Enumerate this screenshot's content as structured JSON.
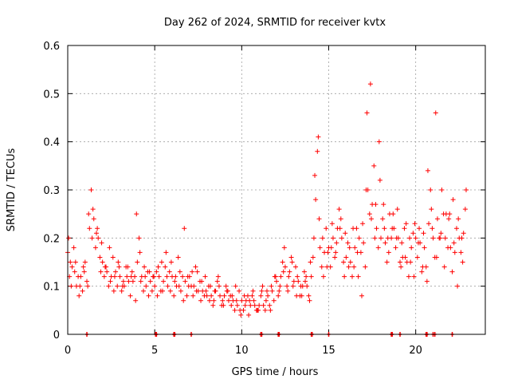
{
  "chart_data": {
    "type": "scatter",
    "title": "Day 262 of 2024, SRMTID for receiver kvtx",
    "xlabel": "GPS time / hours",
    "ylabel": "SRMTID / TECUs",
    "xlim": [
      0,
      24
    ],
    "ylim": [
      0,
      0.6
    ],
    "xticks": [
      0,
      5,
      10,
      15,
      20
    ],
    "yticks": [
      0,
      0.1,
      0.2,
      0.3,
      0.4,
      0.5,
      0.6
    ],
    "xtick_labels": [
      "0",
      "5",
      "10",
      "15",
      "20"
    ],
    "ytick_labels": [
      "0",
      "0.1",
      "0.2",
      "0.3",
      "0.4",
      "0.5",
      "0.6"
    ],
    "grid": true,
    "marker": "+",
    "series_color": "#ff0000",
    "series": [
      {
        "name": "SRMTID",
        "x": [
          0.0,
          0.25,
          0.5,
          0.75,
          1.0,
          1.25,
          1.5,
          1.75,
          2.0,
          2.25,
          2.5,
          2.75,
          3.0,
          3.25,
          3.5,
          3.75,
          4.0,
          4.25,
          4.5,
          4.75,
          5.0,
          5.25,
          5.5,
          5.75,
          6.0,
          6.25,
          6.5,
          6.75,
          7.0,
          7.25,
          7.5,
          7.75,
          8.0,
          8.25,
          8.5,
          8.75,
          9.0,
          9.25,
          9.5,
          9.75,
          10.0,
          10.25,
          10.5,
          10.75,
          11.0,
          11.25,
          11.5,
          11.75,
          12.0,
          12.25,
          12.5,
          12.75,
          13.0,
          13.25,
          13.5,
          13.75,
          14.0,
          14.25,
          14.5,
          14.75,
          15.0,
          15.25,
          15.5,
          15.75,
          16.0,
          16.25,
          16.5,
          16.75,
          17.0,
          17.25,
          17.5,
          17.75,
          18.0,
          18.25,
          18.5,
          18.75,
          19.0,
          19.25,
          19.5,
          19.75,
          20.0,
          20.25,
          20.5,
          20.75,
          21.0,
          21.25,
          21.5,
          21.75,
          22.0,
          22.25,
          22.5,
          22.75
        ],
        "y": [
          0.17,
          0.14,
          0.1,
          0.12,
          0.15,
          0.22,
          0.24,
          0.2,
          0.15,
          0.13,
          0.12,
          0.13,
          0.12,
          0.1,
          0.11,
          0.11,
          0.15,
          0.12,
          0.1,
          0.11,
          0.1,
          0.12,
          0.11,
          0.1,
          0.12,
          0.1,
          0.09,
          0.11,
          0.12,
          0.1,
          0.09,
          0.09,
          0.08,
          0.08,
          0.09,
          0.08,
          0.08,
          0.07,
          0.07,
          0.06,
          0.07,
          0.07,
          0.06,
          0.06,
          0.06,
          0.06,
          0.08,
          0.09,
          0.11,
          0.12,
          0.14,
          0.13,
          0.11,
          0.11,
          0.1,
          0.1,
          0.12,
          0.28,
          0.18,
          0.17,
          0.18,
          0.2,
          0.22,
          0.2,
          0.16,
          0.15,
          0.18,
          0.2,
          0.19,
          0.3,
          0.27,
          0.22,
          0.2,
          0.19,
          0.25,
          0.22,
          0.2,
          0.16,
          0.15,
          0.18,
          0.2,
          0.19,
          0.18,
          0.23,
          0.2,
          0.24,
          0.3,
          0.25,
          0.18,
          0.17,
          0.2,
          0.21
        ]
      },
      {
        "name": "SRMTID",
        "x": [
          0.1,
          0.35,
          0.6,
          0.85,
          1.1,
          1.35,
          1.6,
          1.85,
          2.1,
          2.35,
          2.6,
          2.85,
          3.1,
          3.35,
          3.6,
          3.85,
          4.1,
          4.35,
          4.6,
          4.85,
          5.1,
          5.35,
          5.6,
          5.85,
          6.1,
          6.35,
          6.6,
          6.85,
          7.1,
          7.35,
          7.6,
          7.85,
          8.1,
          8.35,
          8.6,
          8.85,
          9.1,
          9.35,
          9.6,
          9.85,
          10.1,
          10.35,
          10.6,
          10.85,
          11.1,
          11.35,
          11.6,
          11.85,
          12.1,
          12.35,
          12.6,
          12.85,
          13.1,
          13.35,
          13.6,
          13.85,
          14.1,
          14.35,
          14.6,
          14.85,
          15.1,
          15.35,
          15.6,
          15.85,
          16.1,
          16.35,
          16.6,
          16.85,
          17.1,
          17.35,
          17.6,
          17.85,
          18.1,
          18.35,
          18.6,
          18.85,
          19.1,
          19.35,
          19.6,
          19.85,
          20.1,
          20.35,
          20.6,
          20.85,
          21.1,
          21.35,
          21.6,
          21.85,
          22.1,
          22.35,
          22.6,
          22.85
        ],
        "y": [
          0.12,
          0.18,
          0.12,
          0.09,
          0.11,
          0.3,
          0.18,
          0.16,
          0.12,
          0.1,
          0.16,
          0.1,
          0.09,
          0.14,
          0.08,
          0.12,
          0.2,
          0.09,
          0.13,
          0.09,
          0.13,
          0.09,
          0.14,
          0.13,
          0.08,
          0.16,
          0.12,
          0.08,
          0.1,
          0.14,
          0.11,
          0.08,
          0.1,
          0.06,
          0.11,
          0.06,
          0.1,
          0.08,
          0.05,
          0.09,
          0.05,
          0.08,
          0.08,
          0.05,
          0.08,
          0.05,
          0.06,
          0.07,
          0.08,
          0.15,
          0.1,
          0.16,
          0.14,
          0.08,
          0.13,
          0.08,
          0.16,
          0.38,
          0.14,
          0.22,
          0.14,
          0.16,
          0.26,
          0.15,
          0.19,
          0.12,
          0.22,
          0.17,
          0.14,
          0.25,
          0.35,
          0.18,
          0.24,
          0.15,
          0.2,
          0.18,
          0.15,
          0.22,
          0.12,
          0.21,
          0.16,
          0.13,
          0.14,
          0.3,
          0.16,
          0.2,
          0.25,
          0.18,
          0.13,
          0.22,
          0.17,
          0.26
        ]
      },
      {
        "name": "SRMTID",
        "x": [
          0.05,
          0.2,
          0.45,
          0.7,
          0.95,
          1.2,
          1.45,
          1.7,
          1.95,
          2.2,
          2.45,
          2.7,
          2.95,
          3.2,
          3.45,
          3.7,
          3.95,
          4.2,
          4.45,
          4.7,
          4.95,
          5.2,
          5.45,
          5.7,
          5.95,
          6.2,
          6.45,
          6.7,
          6.95,
          7.2,
          7.45,
          7.7,
          7.95,
          8.2,
          8.45,
          8.7,
          8.95,
          9.2,
          9.45,
          9.7,
          9.95,
          10.2,
          10.45,
          10.7,
          10.95,
          11.2,
          11.45,
          11.7,
          11.95,
          12.2,
          12.45,
          12.7,
          12.95,
          13.2,
          13.45,
          13.7,
          13.95,
          14.2,
          14.45,
          14.7,
          14.95,
          15.2,
          15.45,
          15.7,
          15.95,
          16.2,
          16.45,
          16.7,
          16.95,
          17.2,
          17.45,
          17.7,
          17.95,
          18.2,
          18.45,
          18.7,
          18.95,
          19.2,
          19.45,
          19.7,
          19.95,
          20.2,
          20.45,
          20.7,
          20.95,
          21.2,
          21.45,
          21.7,
          21.95,
          22.2,
          22.45,
          22.7
        ],
        "y": [
          0.2,
          0.1,
          0.15,
          0.1,
          0.13,
          0.25,
          0.26,
          0.22,
          0.19,
          0.14,
          0.11,
          0.12,
          0.14,
          0.11,
          0.14,
          0.13,
          0.25,
          0.11,
          0.12,
          0.13,
          0.12,
          0.14,
          0.09,
          0.12,
          0.15,
          0.12,
          0.13,
          0.22,
          0.1,
          0.08,
          0.13,
          0.11,
          0.09,
          0.1,
          0.09,
          0.1,
          0.06,
          0.09,
          0.08,
          0.07,
          0.04,
          0.06,
          0.07,
          0.07,
          0.05,
          0.1,
          0.09,
          0.1,
          0.12,
          0.1,
          0.18,
          0.12,
          0.1,
          0.12,
          0.08,
          0.12,
          0.15,
          0.33,
          0.24,
          0.12,
          0.17,
          0.23,
          0.19,
          0.24,
          0.21,
          0.18,
          0.14,
          0.12,
          0.23,
          0.46,
          0.24,
          0.27,
          0.32,
          0.22,
          0.17,
          0.25,
          0.26,
          0.19,
          0.23,
          0.15,
          0.23,
          0.22,
          0.21,
          0.34,
          0.22,
          0.16,
          0.21,
          0.2,
          0.25,
          0.19,
          0.24,
          0.15
        ]
      },
      {
        "name": "SRMTID",
        "x": [
          0.15,
          0.4,
          0.65,
          0.9,
          1.15,
          1.4,
          1.65,
          1.9,
          2.15,
          2.4,
          2.65,
          2.9,
          3.15,
          3.4,
          3.65,
          3.9,
          4.15,
          4.4,
          4.65,
          4.9,
          5.15,
          5.4,
          5.65,
          5.9,
          6.15,
          6.4,
          6.65,
          6.9,
          7.15,
          7.4,
          7.65,
          7.9,
          8.15,
          8.4,
          8.65,
          8.9,
          9.15,
          9.4,
          9.65,
          9.9,
          10.15,
          10.4,
          10.65,
          10.9,
          11.15,
          11.4,
          11.65,
          11.9,
          12.15,
          12.4,
          12.65,
          12.9,
          13.15,
          13.4,
          13.65,
          13.9,
          14.15,
          14.4,
          14.65,
          14.9,
          15.15,
          15.4,
          15.65,
          15.9,
          16.15,
          16.4,
          16.65,
          16.9,
          17.15,
          17.4,
          17.65,
          17.9,
          18.15,
          18.4,
          18.65,
          18.9,
          19.15,
          19.4,
          19.65,
          19.9,
          20.15,
          20.4,
          20.65,
          20.9,
          21.15,
          21.4,
          21.65,
          21.9,
          22.15,
          22.4,
          22.65,
          22.9
        ],
        "y": [
          0.15,
          0.13,
          0.08,
          0.14,
          0.1,
          0.2,
          0.21,
          0.13,
          0.14,
          0.18,
          0.09,
          0.15,
          0.1,
          0.12,
          0.12,
          0.07,
          0.17,
          0.14,
          0.08,
          0.12,
          0.08,
          0.15,
          0.17,
          0.09,
          0.11,
          0.1,
          0.07,
          0.12,
          0.13,
          0.09,
          0.07,
          0.12,
          0.07,
          0.07,
          0.12,
          0.07,
          0.09,
          0.06,
          0.1,
          0.05,
          0.08,
          0.04,
          0.09,
          0.05,
          0.09,
          0.07,
          0.05,
          0.12,
          0.09,
          0.13,
          0.09,
          0.15,
          0.08,
          0.1,
          0.11,
          0.07,
          0.2,
          0.41,
          0.2,
          0.14,
          0.18,
          0.17,
          0.22,
          0.12,
          0.14,
          0.22,
          0.17,
          0.08,
          0.3,
          0.52,
          0.2,
          0.4,
          0.27,
          0.2,
          0.22,
          0.2,
          0.14,
          0.16,
          0.2,
          0.12,
          0.19,
          0.14,
          0.11,
          0.26,
          0.46,
          0.2,
          0.14,
          0.24,
          0.28,
          0.1,
          0.2,
          0.3
        ]
      }
    ],
    "baseline_marks_x": [
      1.1,
      5.05,
      5.1,
      6.1,
      6.15,
      7.1,
      11.1,
      11.15,
      12.1,
      12.15,
      14.0,
      14.05,
      15.0,
      18.6,
      18.65,
      19.1,
      20.6,
      20.65,
      21.0,
      21.1,
      22.1
    ]
  }
}
